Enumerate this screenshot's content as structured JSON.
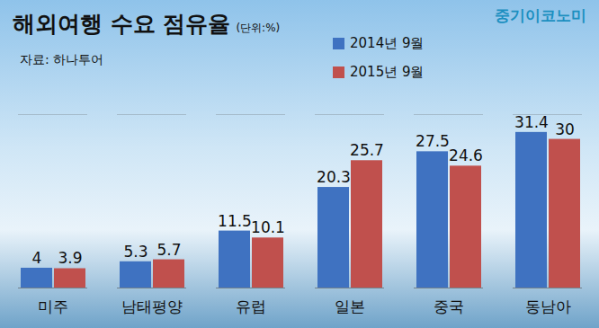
{
  "chart_data": {
    "type": "bar",
    "title": "해외여행 수요 점유율",
    "annotations": [
      "(단위:%)",
      "자료: 하나투어",
      "중기이코노미"
    ],
    "categories": [
      "미주",
      "남태평양",
      "유럽",
      "일본",
      "중국",
      "동남아"
    ],
    "series": [
      {
        "name": "2014년 9월",
        "color": "#3f72c1",
        "values": [
          4,
          5.3,
          11.5,
          20.3,
          27.5,
          31.4
        ]
      },
      {
        "name": "2015년 9월",
        "color": "#c0504d",
        "values": [
          3.9,
          5.7,
          10.1,
          25.7,
          24.6,
          30
        ]
      }
    ],
    "ylim": [
      0,
      35
    ],
    "yticks": [],
    "grid": false,
    "legend": "top-right",
    "data_labels": true,
    "tick_labels": "x"
  }
}
